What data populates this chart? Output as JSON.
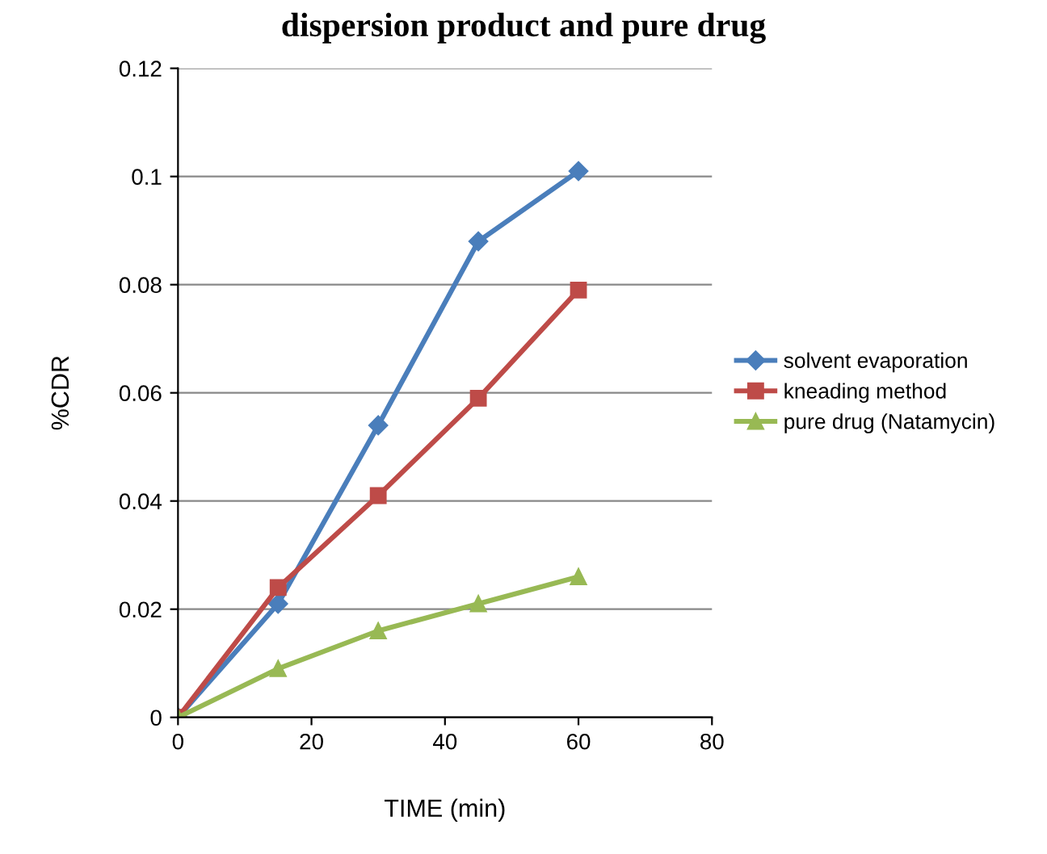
{
  "chart_data": {
    "type": "line",
    "title": "dispersion product and pure drug",
    "xlabel": "TIME (min)",
    "ylabel": "%CDR",
    "x": [
      0,
      15,
      30,
      45,
      60
    ],
    "series": [
      {
        "name": "solvent evaporation",
        "color": "#4a7ebb",
        "marker": "diamond",
        "values": [
          0,
          0.021,
          0.054,
          0.088,
          0.101
        ]
      },
      {
        "name": "kneading method",
        "color": "#be4b48",
        "marker": "square",
        "values": [
          0,
          0.024,
          0.041,
          0.059,
          0.079
        ]
      },
      {
        "name": "pure drug (Natamycin)",
        "color": "#98b954",
        "marker": "triangle",
        "values": [
          0,
          0.009,
          0.016,
          0.021,
          0.026
        ]
      }
    ],
    "xlim": [
      0,
      80
    ],
    "xticks": [
      0,
      20,
      40,
      60,
      80
    ],
    "ylim": [
      0,
      0.12
    ],
    "yticks": [
      0,
      0.02,
      0.04,
      0.06,
      0.08,
      0.1,
      0.12
    ],
    "grid": "y",
    "legend": "right"
  }
}
